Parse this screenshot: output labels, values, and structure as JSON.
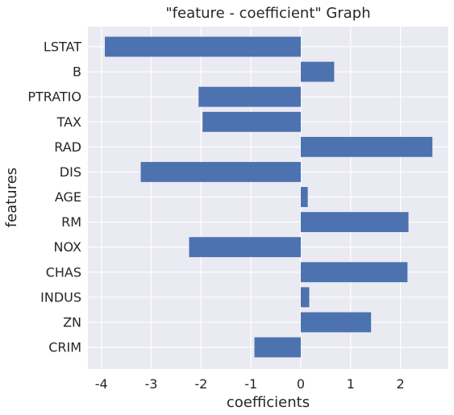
{
  "chart_data": {
    "type": "bar",
    "orientation": "horizontal",
    "title": "\"feature - coefficient\" Graph",
    "xlabel": "coefficients",
    "ylabel": "features",
    "categories": [
      "CRIM",
      "ZN",
      "INDUS",
      "CHAS",
      "NOX",
      "RM",
      "AGE",
      "DIS",
      "RAD",
      "TAX",
      "PTRATIO",
      "B",
      "LSTAT"
    ],
    "values": [
      -0.93,
      1.41,
      0.17,
      2.14,
      -2.24,
      2.16,
      0.14,
      -3.21,
      2.64,
      -1.97,
      -2.05,
      0.67,
      -3.93
    ],
    "xlim": [
      -4.27,
      2.96
    ],
    "xticks": [
      -4,
      -3,
      -2,
      -1,
      0,
      1,
      2
    ],
    "xtick_labels": [
      "-4",
      "-3",
      "-2",
      "-1",
      "0",
      "1",
      "2"
    ],
    "grid": true,
    "bar_color": "#4c72b0",
    "background_color": "#eaeaf2",
    "grid_color": "#ffffff"
  }
}
